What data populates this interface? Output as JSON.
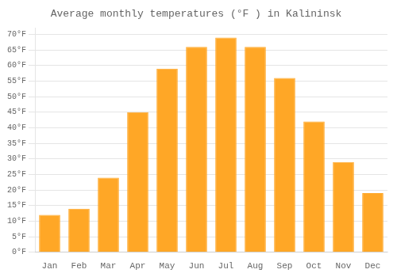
{
  "chart_data": {
    "type": "bar",
    "title": "Average monthly temperatures (°F ) in Kalininsk",
    "categories": [
      "Jan",
      "Feb",
      "Mar",
      "Apr",
      "May",
      "Jun",
      "Jul",
      "Aug",
      "Sep",
      "Oct",
      "Nov",
      "Dec"
    ],
    "values": [
      12,
      14,
      24,
      45,
      59,
      66,
      69,
      66,
      56,
      42,
      29,
      19
    ],
    "color": "#FFA726",
    "ylim": [
      0,
      72
    ],
    "yticks": [
      {
        "value": 0,
        "label": "0°F"
      },
      {
        "value": 5,
        "label": "5°F"
      },
      {
        "value": 10,
        "label": "10°F"
      },
      {
        "value": 15,
        "label": "15°F"
      },
      {
        "value": 20,
        "label": "20°F"
      },
      {
        "value": 25,
        "label": "25°F"
      },
      {
        "value": 30,
        "label": "30°F"
      },
      {
        "value": 35,
        "label": "35°F"
      },
      {
        "value": 40,
        "label": "40°F"
      },
      {
        "value": 45,
        "label": "45°F"
      },
      {
        "value": 50,
        "label": "50°F"
      },
      {
        "value": 55,
        "label": "55°F"
      },
      {
        "value": 60,
        "label": "60°F"
      },
      {
        "value": 65,
        "label": "65°F"
      },
      {
        "value": 70,
        "label": "70°F"
      }
    ],
    "grid": true
  }
}
